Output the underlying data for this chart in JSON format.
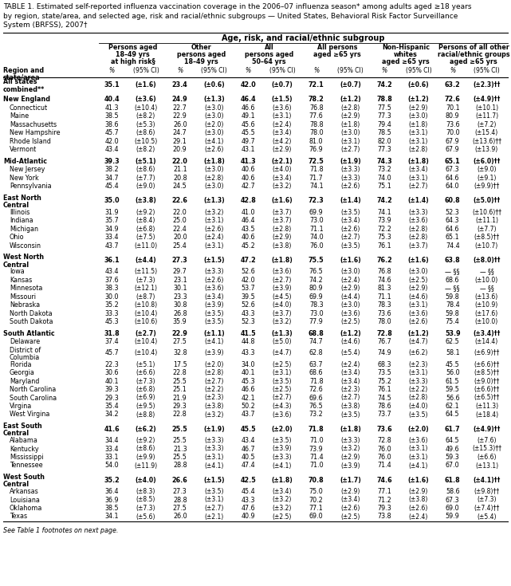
{
  "title_lines": [
    "TABLE 1. Estimated self-reported influenza vaccination coverage in the 2006–07 influenza season* among adults aged ≥18 years",
    "by region, state/area, and selected age, risk and racial/ethnic subgroups — United States, Behavioral Risk Factor Surveillance",
    "System (BRFSS), 2007†"
  ],
  "col_header_top": "Age, risk, and racial/ethnic subgroup",
  "col_headers": [
    [
      "Persons aged",
      "18–49 yrs",
      "at high risk§"
    ],
    [
      "Other",
      "persons aged",
      "18–49 yrs"
    ],
    [
      "All",
      "persons aged",
      "50–64 yrs"
    ],
    [
      "All persons",
      "aged ≥65 yrs"
    ],
    [
      "Non-Hispanic",
      "whites",
      "aged ≥65 yrs"
    ],
    [
      "Persons of all other",
      "racial/ethnic groups",
      "aged ≥65 yrs"
    ]
  ],
  "rows": [
    {
      "label": "All states\ncombined**",
      "bold": true,
      "data": [
        "35.1",
        "(±1.6)",
        "23.4",
        "(±0.6)",
        "42.0",
        "(±0.7)",
        "72.1",
        "(±0.7)",
        "74.2",
        "(±0.6)",
        "63.2",
        "(±2.3)††"
      ]
    },
    {
      "label": "",
      "bold": false,
      "data": []
    },
    {
      "label": "New England",
      "bold": true,
      "data": [
        "40.4",
        "(±3.6)",
        "24.9",
        "(±1.3)",
        "46.4",
        "(±1.5)",
        "78.2",
        "(±1.2)",
        "78.8",
        "(±1.2)",
        "72.6",
        "(±4.9)††"
      ]
    },
    {
      "label": "Connecticut",
      "bold": false,
      "data": [
        "41.3",
        "(±10.4)",
        "22.7",
        "(±3.0)",
        "46.6",
        "(±3.6)",
        "76.8",
        "(±2.8)",
        "77.5",
        "(±2.9)",
        "70.1",
        "(±10.1)"
      ]
    },
    {
      "label": "Maine",
      "bold": false,
      "data": [
        "38.5",
        "(±8.2)",
        "22.9",
        "(±3.0)",
        "49.1",
        "(±3.1)",
        "77.6",
        "(±2.9)",
        "77.3",
        "(±3.0)",
        "80.9",
        "(±11.7)"
      ]
    },
    {
      "label": "Massachusetts",
      "bold": false,
      "data": [
        "38.6",
        "(±5.3)",
        "26.0",
        "(±2.0)",
        "45.6",
        "(±2.4)",
        "78.8",
        "(±1.8)",
        "79.4",
        "(±1.8)",
        "73.6",
        "(±7.2)"
      ]
    },
    {
      "label": "New Hampshire",
      "bold": false,
      "data": [
        "45.7",
        "(±8.6)",
        "24.7",
        "(±3.0)",
        "45.5",
        "(±3.4)",
        "78.0",
        "(±3.0)",
        "78.5",
        "(±3.1)",
        "70.0",
        "(±15.4)"
      ]
    },
    {
      "label": "Rhode Island",
      "bold": false,
      "data": [
        "42.0",
        "(±10.5)",
        "29.1",
        "(±4.1)",
        "49.7",
        "(±4.2)",
        "81.0",
        "(±3.1)",
        "82.0",
        "(±3.1)",
        "67.9",
        "(±13.6)††"
      ]
    },
    {
      "label": "Vermont",
      "bold": false,
      "data": [
        "43.4",
        "(±8.2)",
        "20.9",
        "(±2.6)",
        "43.1",
        "(±2.9)",
        "76.9",
        "(±2.7)",
        "77.3",
        "(±2.8)",
        "67.9",
        "(±13.9)"
      ]
    },
    {
      "label": "",
      "bold": false,
      "data": []
    },
    {
      "label": "Mid-Atlantic",
      "bold": true,
      "data": [
        "39.3",
        "(±5.1)",
        "22.0",
        "(±1.8)",
        "41.3",
        "(±2.1)",
        "72.5",
        "(±1.9)",
        "74.3",
        "(±1.8)",
        "65.1",
        "(±6.0)††"
      ]
    },
    {
      "label": "New Jersey",
      "bold": false,
      "data": [
        "38.2",
        "(±8.6)",
        "21.1",
        "(±3.0)",
        "40.6",
        "(±4.0)",
        "71.8",
        "(±3.3)",
        "73.2",
        "(±3.4)",
        "67.3",
        "(±9.0)"
      ]
    },
    {
      "label": "New York",
      "bold": false,
      "data": [
        "34.7",
        "(±7.7)",
        "20.8",
        "(±2.8)",
        "40.6",
        "(±3.4)",
        "71.7",
        "(±3.3)",
        "74.0",
        "(±3.1)",
        "64.6",
        "(±9.1)"
      ]
    },
    {
      "label": "Pennsylvania",
      "bold": false,
      "data": [
        "45.4",
        "(±9.0)",
        "24.5",
        "(±3.0)",
        "42.7",
        "(±3.2)",
        "74.1",
        "(±2.6)",
        "75.1",
        "(±2.7)",
        "64.0",
        "(±9.9)††"
      ]
    },
    {
      "label": "",
      "bold": false,
      "data": []
    },
    {
      "label": "East North\nCentral",
      "bold": true,
      "data": [
        "35.0",
        "(±3.8)",
        "22.6",
        "(±1.3)",
        "42.8",
        "(±1.6)",
        "72.3",
        "(±1.4)",
        "74.2",
        "(±1.4)",
        "60.8",
        "(±5.0)††"
      ]
    },
    {
      "label": "Illinois",
      "bold": false,
      "data": [
        "31.9",
        "(±9.2)",
        "22.0",
        "(±3.2)",
        "41.0",
        "(±3.7)",
        "69.9",
        "(±3.5)",
        "74.1",
        "(±3.3)",
        "52.3",
        "(±10.6)††"
      ]
    },
    {
      "label": "Indiana",
      "bold": false,
      "data": [
        "35.7",
        "(±8.4)",
        "25.0",
        "(±3.1)",
        "46.4",
        "(±3.7)",
        "73.0",
        "(±3.4)",
        "73.9",
        "(±3.6)",
        "64.3",
        "(±11.1)"
      ]
    },
    {
      "label": "Michigan",
      "bold": false,
      "data": [
        "34.9",
        "(±6.8)",
        "22.4",
        "(±2.6)",
        "43.5",
        "(±2.8)",
        "71.1",
        "(±2.6)",
        "72.2",
        "(±2.8)",
        "64.6",
        "(±7.7)"
      ]
    },
    {
      "label": "Ohio",
      "bold": false,
      "data": [
        "33.4",
        "(±7.5)",
        "20.0",
        "(±2.4)",
        "40.6",
        "(±2.9)",
        "74.0",
        "(±2.7)",
        "75.3",
        "(±2.8)",
        "65.1",
        "(±8.5)††"
      ]
    },
    {
      "label": "Wisconsin",
      "bold": false,
      "data": [
        "43.7",
        "(±11.0)",
        "25.4",
        "(±3.1)",
        "45.2",
        "(±3.8)",
        "76.0",
        "(±3.5)",
        "76.1",
        "(±3.7)",
        "74.4",
        "(±10.7)"
      ]
    },
    {
      "label": "",
      "bold": false,
      "data": []
    },
    {
      "label": "West North\nCentral",
      "bold": true,
      "data": [
        "36.1",
        "(±4.4)",
        "27.3",
        "(±1.5)",
        "47.2",
        "(±1.8)",
        "75.5",
        "(±1.6)",
        "76.2",
        "(±1.6)",
        "63.8",
        "(±8.0)††"
      ]
    },
    {
      "label": "Iowa",
      "bold": false,
      "data": [
        "43.4",
        "(±11.5)",
        "29.7",
        "(±3.3)",
        "52.6",
        "(±3.6)",
        "76.5",
        "(±3.0)",
        "76.8",
        "(±3.0)",
        "— §§",
        "— §§"
      ]
    },
    {
      "label": "Kansas",
      "bold": false,
      "data": [
        "37.6",
        "(±7.3)",
        "23.1",
        "(±2.6)",
        "42.0",
        "(±2.7)",
        "74.2",
        "(±2.4)",
        "74.6",
        "(±2.5)",
        "68.6",
        "(±10.0)"
      ]
    },
    {
      "label": "Minnesota",
      "bold": false,
      "data": [
        "38.3",
        "(±12.1)",
        "30.1",
        "(±3.6)",
        "53.7",
        "(±3.9)",
        "80.9",
        "(±2.9)",
        "81.3",
        "(±2.9)",
        "— §§",
        "— §§"
      ]
    },
    {
      "label": "Missouri",
      "bold": false,
      "data": [
        "30.0",
        "(±8.7)",
        "23.3",
        "(±3.4)",
        "39.5",
        "(±4.5)",
        "69.9",
        "(±4.4)",
        "71.1",
        "(±4.6)",
        "59.8",
        "(±13.6)"
      ]
    },
    {
      "label": "Nebraska",
      "bold": false,
      "data": [
        "35.2",
        "(±10.8)",
        "30.8",
        "(±3.9)",
        "52.6",
        "(±4.0)",
        "78.3",
        "(±3.0)",
        "78.3",
        "(±3.1)",
        "78.4",
        "(±10.9)"
      ]
    },
    {
      "label": "North Dakota",
      "bold": false,
      "data": [
        "33.3",
        "(±10.4)",
        "26.8",
        "(±3.5)",
        "43.3",
        "(±3.7)",
        "73.0",
        "(±3.6)",
        "73.6",
        "(±3.6)",
        "59.8",
        "(±17.6)"
      ]
    },
    {
      "label": "South Dakota",
      "bold": false,
      "data": [
        "45.3",
        "(±10.6)",
        "35.9",
        "(±3.5)",
        "52.3",
        "(±3.2)",
        "77.9",
        "(±2.5)",
        "78.0",
        "(±2.6)",
        "75.4",
        "(±10.0)"
      ]
    },
    {
      "label": "",
      "bold": false,
      "data": []
    },
    {
      "label": "South Atlantic",
      "bold": true,
      "data": [
        "31.8",
        "(±2.7)",
        "22.9",
        "(±1.1)",
        "41.5",
        "(±1.3)",
        "68.8",
        "(±1.2)",
        "72.8",
        "(±1.2)",
        "53.9",
        "(±3.4)††"
      ]
    },
    {
      "label": "Delaware",
      "bold": false,
      "data": [
        "37.4",
        "(±10.4)",
        "27.5",
        "(±4.1)",
        "44.8",
        "(±5.0)",
        "74.7",
        "(±4.6)",
        "76.7",
        "(±4.7)",
        "62.5",
        "(±14.4)"
      ]
    },
    {
      "label": "District of\nColumbia",
      "bold": false,
      "data": [
        "45.7",
        "(±10.4)",
        "32.8",
        "(±3.9)",
        "43.3",
        "(±4.7)",
        "62.8",
        "(±5.4)",
        "74.9",
        "(±6.2)",
        "58.1",
        "(±6.9)††"
      ]
    },
    {
      "label": "Florida",
      "bold": false,
      "data": [
        "22.3",
        "(±5.1)",
        "17.5",
        "(±2.0)",
        "34.0",
        "(±2.5)",
        "63.7",
        "(±2.4)",
        "68.3",
        "(±2.3)",
        "45.5",
        "(±6.6)††"
      ]
    },
    {
      "label": "Georgia",
      "bold": false,
      "data": [
        "30.6",
        "(±6.6)",
        "22.8",
        "(±2.8)",
        "40.1",
        "(±3.1)",
        "68.6",
        "(±3.4)",
        "73.5",
        "(±3.1)",
        "56.0",
        "(±8.5)††"
      ]
    },
    {
      "label": "Maryland",
      "bold": false,
      "data": [
        "40.1",
        "(±7.3)",
        "25.5",
        "(±2.7)",
        "45.3",
        "(±3.5)",
        "71.8",
        "(±3.4)",
        "75.2",
        "(±3.3)",
        "61.5",
        "(±9.0)††"
      ]
    },
    {
      "label": "North Carolina",
      "bold": false,
      "data": [
        "39.3",
        "(±6.8)",
        "25.1",
        "(±2.2)",
        "46.6",
        "(±2.5)",
        "72.6",
        "(±2.3)",
        "76.1",
        "(±2.2)",
        "59.5",
        "(±6.6)††"
      ]
    },
    {
      "label": "South Carolina",
      "bold": false,
      "data": [
        "29.3",
        "(±6.9)",
        "21.9",
        "(±2.3)",
        "42.1",
        "(±2.7)",
        "69.6",
        "(±2.7)",
        "74.5",
        "(±2.8)",
        "56.6",
        "(±6.5)††"
      ]
    },
    {
      "label": "Virgina",
      "bold": false,
      "data": [
        "35.4",
        "(±9.5)",
        "29.3",
        "(±3.8)",
        "50.2",
        "(±4.3)",
        "76.5",
        "(±3.8)",
        "78.6",
        "(±4.0)",
        "62.1",
        "(±11.3)"
      ]
    },
    {
      "label": "West Virgina",
      "bold": false,
      "data": [
        "34.2",
        "(±8.8)",
        "22.8",
        "(±3.2)",
        "43.7",
        "(±3.6)",
        "73.2",
        "(±3.5)",
        "73.7",
        "(±3.5)",
        "64.5",
        "(±18.4)"
      ]
    },
    {
      "label": "",
      "bold": false,
      "data": []
    },
    {
      "label": "East South\nCentral",
      "bold": true,
      "data": [
        "41.6",
        "(±6.2)",
        "25.5",
        "(±1.9)",
        "45.5",
        "(±2.0)",
        "71.8",
        "(±1.8)",
        "73.6",
        "(±2.0)",
        "61.7",
        "(±4.9)††"
      ]
    },
    {
      "label": "Alabama",
      "bold": false,
      "data": [
        "34.4",
        "(±9.2)",
        "25.5",
        "(±3.3)",
        "43.4",
        "(±3.5)",
        "71.0",
        "(±3.3)",
        "72.8",
        "(±3.6)",
        "64.5",
        "(±7.6)"
      ]
    },
    {
      "label": "Kentucky",
      "bold": false,
      "data": [
        "33.4",
        "(±8.6)",
        "21.3",
        "(±3.3)",
        "46.7",
        "(±3.9)",
        "73.9",
        "(±3.2)",
        "76.0",
        "(±3.1)",
        "49.6",
        "(±15.3)††"
      ]
    },
    {
      "label": "Mississippi",
      "bold": false,
      "data": [
        "33.1",
        "(±9.9)",
        "25.5",
        "(±3.1)",
        "40.5",
        "(±3.3)",
        "71.4",
        "(±2.9)",
        "76.0",
        "(±3.1)",
        "59.3",
        "(±6.6)"
      ]
    },
    {
      "label": "Tennessee",
      "bold": false,
      "data": [
        "54.0",
        "(±11.9)",
        "28.8",
        "(±4.1)",
        "47.4",
        "(±4.1)",
        "71.0",
        "(±3.9)",
        "71.4",
        "(±4.1)",
        "67.0",
        "(±13.1)"
      ]
    },
    {
      "label": "",
      "bold": false,
      "data": []
    },
    {
      "label": "West South\nCentral",
      "bold": true,
      "data": [
        "35.2",
        "(±4.0)",
        "26.6",
        "(±1.5)",
        "42.5",
        "(±1.8)",
        "70.8",
        "(±1.7)",
        "74.6",
        "(±1.6)",
        "61.8",
        "(±4.1)††"
      ]
    },
    {
      "label": "Arkansas",
      "bold": false,
      "data": [
        "36.4",
        "(±8.3)",
        "27.3",
        "(±3.5)",
        "45.4",
        "(±3.4)",
        "75.0",
        "(±2.9)",
        "77.1",
        "(±2.9)",
        "58.6",
        "(±9.8)††"
      ]
    },
    {
      "label": "Louisiana",
      "bold": false,
      "data": [
        "36.9",
        "(±8.5)",
        "28.8",
        "(±3.1)",
        "43.3",
        "(±3.2)",
        "70.2",
        "(±3.4)",
        "71.2",
        "(±3.8)",
        "67.3",
        "(±7.3)"
      ]
    },
    {
      "label": "Oklahoma",
      "bold": false,
      "data": [
        "38.5",
        "(±7.3)",
        "27.5",
        "(±2.7)",
        "47.6",
        "(±3.2)",
        "77.1",
        "(±2.6)",
        "79.3",
        "(±2.6)",
        "69.0",
        "(±7.4)††"
      ]
    },
    {
      "label": "Texas",
      "bold": false,
      "data": [
        "34.1",
        "(±5.6)",
        "26.0",
        "(±2.1)",
        "40.9",
        "(±2.5)",
        "69.0",
        "(±2.5)",
        "73.8",
        "(±2.4)",
        "59.9",
        "(±5.4)"
      ]
    },
    {
      "label": "",
      "bold": false,
      "data": []
    },
    {
      "label": "See Table 1 footnotes on next page.",
      "bold": false,
      "data": [],
      "footnote": true
    }
  ]
}
